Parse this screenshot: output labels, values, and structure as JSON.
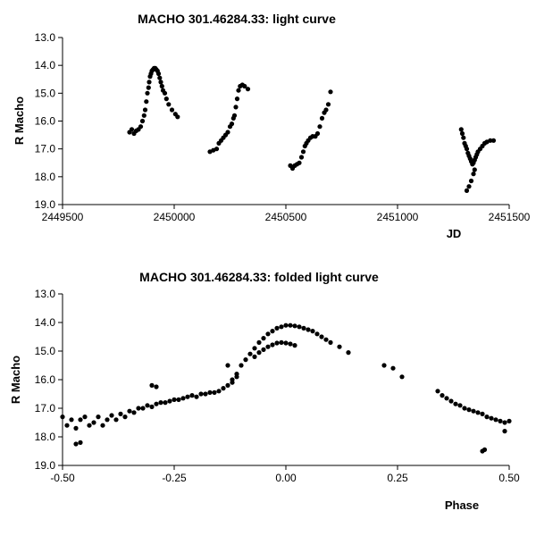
{
  "chart_data": [
    {
      "type": "scatter",
      "title": "MACHO 301.46284.33: light curve",
      "xlabel": "JD",
      "ylabel": "R Macho",
      "xlim": [
        2449500,
        2451500
      ],
      "ylim": [
        13.0,
        19.0
      ],
      "y_inverted": true,
      "grid": false,
      "x_ticks": [
        "2449500",
        "2450000",
        "2450500",
        "2451000",
        "2451500"
      ],
      "y_ticks": [
        "13.0",
        "14.0",
        "15.0",
        "16.0",
        "17.0",
        "18.0",
        "19.0"
      ],
      "series": [
        {
          "points": [
            [
              2449800,
              16.4
            ],
            [
              2449810,
              16.3
            ],
            [
              2449820,
              16.45
            ],
            [
              2449830,
              16.35
            ],
            [
              2449840,
              16.3
            ],
            [
              2449850,
              16.2
            ],
            [
              2449858,
              16.0
            ],
            [
              2449865,
              15.8
            ],
            [
              2449870,
              15.6
            ],
            [
              2449875,
              15.3
            ],
            [
              2449880,
              15.0
            ],
            [
              2449885,
              14.8
            ],
            [
              2449888,
              14.6
            ],
            [
              2449892,
              14.4
            ],
            [
              2449896,
              14.3
            ],
            [
              2449900,
              14.2
            ],
            [
              2449905,
              14.15
            ],
            [
              2449910,
              14.1
            ],
            [
              2449915,
              14.1
            ],
            [
              2449920,
              14.15
            ],
            [
              2449925,
              14.2
            ],
            [
              2449930,
              14.3
            ],
            [
              2449935,
              14.45
            ],
            [
              2449940,
              14.6
            ],
            [
              2449945,
              14.75
            ],
            [
              2449950,
              14.9
            ],
            [
              2449958,
              15.0
            ],
            [
              2449965,
              15.2
            ],
            [
              2449975,
              15.4
            ],
            [
              2449990,
              15.6
            ],
            [
              2450005,
              15.75
            ],
            [
              2450015,
              15.85
            ],
            [
              2450160,
              17.1
            ],
            [
              2450175,
              17.05
            ],
            [
              2450190,
              17.0
            ],
            [
              2450200,
              16.8
            ],
            [
              2450210,
              16.7
            ],
            [
              2450220,
              16.6
            ],
            [
              2450230,
              16.5
            ],
            [
              2450240,
              16.4
            ],
            [
              2450250,
              16.2
            ],
            [
              2450258,
              16.1
            ],
            [
              2450265,
              15.9
            ],
            [
              2450270,
              15.8
            ],
            [
              2450276,
              15.5
            ],
            [
              2450282,
              15.2
            ],
            [
              2450288,
              14.9
            ],
            [
              2450295,
              14.75
            ],
            [
              2450305,
              14.7
            ],
            [
              2450315,
              14.75
            ],
            [
              2450330,
              14.85
            ],
            [
              2450520,
              17.6
            ],
            [
              2450530,
              17.7
            ],
            [
              2450540,
              17.6
            ],
            [
              2450550,
              17.55
            ],
            [
              2450560,
              17.5
            ],
            [
              2450570,
              17.3
            ],
            [
              2450578,
              17.1
            ],
            [
              2450585,
              16.9
            ],
            [
              2450592,
              16.8
            ],
            [
              2450600,
              16.7
            ],
            [
              2450610,
              16.6
            ],
            [
              2450620,
              16.55
            ],
            [
              2450632,
              16.55
            ],
            [
              2450642,
              16.45
            ],
            [
              2450652,
              16.2
            ],
            [
              2450662,
              15.9
            ],
            [
              2450672,
              15.7
            ],
            [
              2450680,
              15.6
            ],
            [
              2450690,
              15.4
            ],
            [
              2450700,
              14.95
            ],
            [
              2451285,
              16.3
            ],
            [
              2451290,
              16.45
            ],
            [
              2451295,
              16.6
            ],
            [
              2451300,
              16.8
            ],
            [
              2451305,
              16.9
            ],
            [
              2451310,
              17.0
            ],
            [
              2451315,
              17.15
            ],
            [
              2451320,
              17.25
            ],
            [
              2451325,
              17.35
            ],
            [
              2451330,
              17.45
            ],
            [
              2451335,
              17.55
            ],
            [
              2451340,
              17.5
            ],
            [
              2451345,
              17.4
            ],
            [
              2451350,
              17.3
            ],
            [
              2451355,
              17.2
            ],
            [
              2451360,
              17.1
            ],
            [
              2451370,
              17.0
            ],
            [
              2451380,
              16.9
            ],
            [
              2451390,
              16.8
            ],
            [
              2451400,
              16.75
            ],
            [
              2451415,
              16.7
            ],
            [
              2451430,
              16.7
            ],
            [
              2451310,
              18.5
            ],
            [
              2451320,
              18.35
            ],
            [
              2451330,
              18.15
            ],
            [
              2451340,
              17.9
            ],
            [
              2451345,
              17.75
            ]
          ]
        }
      ]
    },
    {
      "type": "scatter",
      "title": "MACHO 301.46284.33: folded light curve",
      "xlabel": "Phase",
      "ylabel": "R Macho",
      "xlim": [
        -0.5,
        0.5
      ],
      "ylim": [
        13.0,
        19.0
      ],
      "y_inverted": true,
      "grid": false,
      "x_ticks": [
        "-0.50",
        "-0.25",
        "0.00",
        "0.25",
        "0.50"
      ],
      "y_ticks": [
        "13.0",
        "14.0",
        "15.0",
        "16.0",
        "17.0",
        "18.0",
        "19.0"
      ],
      "series": [
        {
          "points": [
            [
              -0.5,
              17.3
            ],
            [
              -0.49,
              17.6
            ],
            [
              -0.48,
              17.4
            ],
            [
              -0.47,
              17.7
            ],
            [
              -0.46,
              17.4
            ],
            [
              -0.45,
              17.3
            ],
            [
              -0.44,
              17.6
            ],
            [
              -0.43,
              17.5
            ],
            [
              -0.42,
              17.3
            ],
            [
              -0.41,
              17.6
            ],
            [
              -0.4,
              17.4
            ],
            [
              -0.39,
              17.25
            ],
            [
              -0.38,
              17.4
            ],
            [
              -0.37,
              17.2
            ],
            [
              -0.36,
              17.3
            ],
            [
              -0.35,
              17.1
            ],
            [
              -0.34,
              17.15
            ],
            [
              -0.33,
              17.0
            ],
            [
              -0.32,
              17.0
            ],
            [
              -0.31,
              16.9
            ],
            [
              -0.3,
              16.95
            ],
            [
              -0.29,
              16.85
            ],
            [
              -0.28,
              16.8
            ],
            [
              -0.27,
              16.8
            ],
            [
              -0.26,
              16.75
            ],
            [
              -0.25,
              16.7
            ],
            [
              -0.24,
              16.7
            ],
            [
              -0.23,
              16.65
            ],
            [
              -0.22,
              16.6
            ],
            [
              -0.21,
              16.55
            ],
            [
              -0.2,
              16.6
            ],
            [
              -0.19,
              16.5
            ],
            [
              -0.18,
              16.5
            ],
            [
              -0.17,
              16.45
            ],
            [
              -0.16,
              16.45
            ],
            [
              -0.15,
              16.4
            ],
            [
              -0.14,
              16.3
            ],
            [
              -0.13,
              16.2
            ],
            [
              -0.12,
              16.1
            ],
            [
              -0.11,
              15.8
            ],
            [
              -0.1,
              15.5
            ],
            [
              -0.09,
              15.3
            ],
            [
              -0.08,
              15.1
            ],
            [
              -0.07,
              14.9
            ],
            [
              -0.06,
              14.7
            ],
            [
              -0.05,
              14.55
            ],
            [
              -0.04,
              14.4
            ],
            [
              -0.03,
              14.3
            ],
            [
              -0.02,
              14.2
            ],
            [
              -0.01,
              14.15
            ],
            [
              0.0,
              14.1
            ],
            [
              0.01,
              14.1
            ],
            [
              0.02,
              14.12
            ],
            [
              0.03,
              14.15
            ],
            [
              0.04,
              14.2
            ],
            [
              0.05,
              14.25
            ],
            [
              0.06,
              14.3
            ],
            [
              0.07,
              14.4
            ],
            [
              0.08,
              14.5
            ],
            [
              0.09,
              14.6
            ],
            [
              0.1,
              14.7
            ],
            [
              0.12,
              14.85
            ],
            [
              0.14,
              15.05
            ],
            [
              -0.07,
              15.2
            ],
            [
              -0.06,
              15.05
            ],
            [
              -0.05,
              14.95
            ],
            [
              -0.04,
              14.85
            ],
            [
              -0.03,
              14.78
            ],
            [
              -0.02,
              14.72
            ],
            [
              -0.01,
              14.7
            ],
            [
              0.0,
              14.72
            ],
            [
              0.01,
              14.75
            ],
            [
              0.02,
              14.8
            ],
            [
              -0.11,
              15.9
            ],
            [
              -0.12,
              16.0
            ],
            [
              -0.13,
              15.5
            ],
            [
              -0.3,
              16.2
            ],
            [
              -0.29,
              16.25
            ],
            [
              -0.47,
              18.25
            ],
            [
              -0.46,
              18.2
            ],
            [
              0.22,
              15.5
            ],
            [
              0.24,
              15.6
            ],
            [
              0.26,
              15.9
            ],
            [
              0.34,
              16.4
            ],
            [
              0.35,
              16.55
            ],
            [
              0.36,
              16.65
            ],
            [
              0.37,
              16.75
            ],
            [
              0.38,
              16.85
            ],
            [
              0.39,
              16.9
            ],
            [
              0.4,
              17.0
            ],
            [
              0.41,
              17.05
            ],
            [
              0.42,
              17.1
            ],
            [
              0.43,
              17.15
            ],
            [
              0.44,
              17.2
            ],
            [
              0.45,
              17.3
            ],
            [
              0.46,
              17.35
            ],
            [
              0.47,
              17.4
            ],
            [
              0.48,
              17.45
            ],
            [
              0.49,
              17.5
            ],
            [
              0.5,
              17.45
            ],
            [
              0.49,
              17.8
            ],
            [
              0.44,
              18.5
            ],
            [
              0.445,
              18.45
            ]
          ]
        }
      ]
    }
  ]
}
